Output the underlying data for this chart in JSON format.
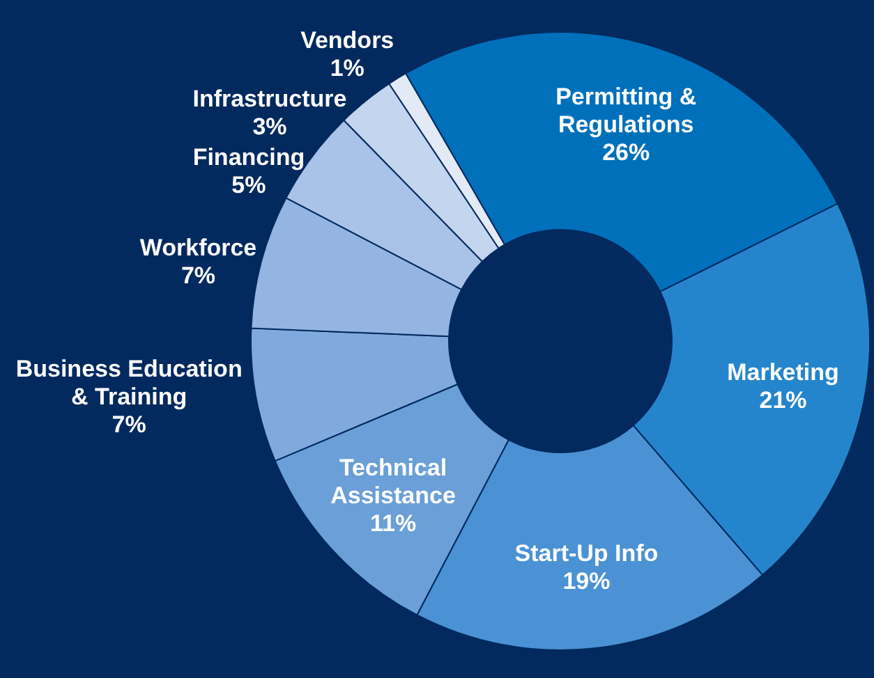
{
  "chart_data": {
    "type": "donut",
    "categories": [
      "Permitting & Regulations",
      "Marketing",
      "Start-Up Info",
      "Technical Assistance",
      "Business Education & Training",
      "Workforce",
      "Financing",
      "Infrastructure",
      "Vendors"
    ],
    "values": [
      26,
      21,
      19,
      11,
      7,
      7,
      5,
      3,
      1
    ],
    "colors": [
      "#0070bb",
      "#2585cc",
      "#4a92d4",
      "#6a9fd8",
      "#80aadd",
      "#94b5e2",
      "#a9c3e8",
      "#c4d5ef",
      "#e2eaf6"
    ],
    "value_labels": [
      "26%",
      "21%",
      "19%",
      "11%",
      "7%",
      "7%",
      "5%",
      "3%",
      "1%"
    ],
    "data_labels": true,
    "legend": false
  }
}
